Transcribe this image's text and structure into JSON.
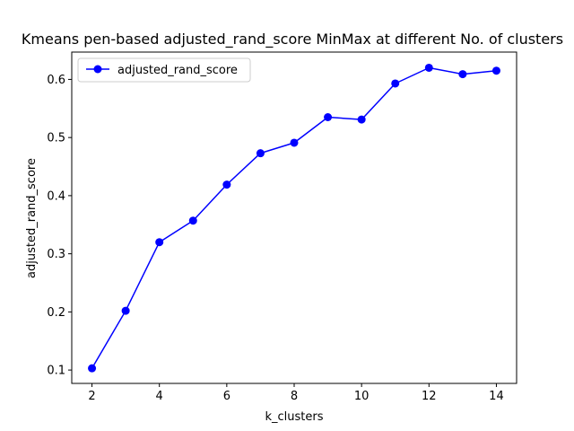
{
  "chart_data": {
    "type": "line",
    "title": "Kmeans pen-based adjusted_rand_score MinMax at different No. of clusters",
    "xlabel": "k_clusters",
    "ylabel": "adjusted_rand_score",
    "x": [
      2,
      3,
      4,
      5,
      6,
      7,
      8,
      9,
      10,
      11,
      12,
      13,
      14
    ],
    "xlim": [
      1.4,
      14.6
    ],
    "ylim": [
      0.077,
      0.647
    ],
    "xticks": [
      2,
      4,
      6,
      8,
      10,
      12,
      14
    ],
    "yticks": [
      0.1,
      0.2,
      0.3,
      0.4,
      0.5,
      0.6
    ],
    "ytick_labels": [
      "0.1",
      "0.2",
      "0.3",
      "0.4",
      "0.5",
      "0.6"
    ],
    "grid": false,
    "legend_position": "upper left",
    "series": [
      {
        "name": "adjusted_rand_score",
        "color": "#0000ff",
        "marker": "circle",
        "values": [
          0.103,
          0.202,
          0.32,
          0.357,
          0.419,
          0.473,
          0.491,
          0.535,
          0.531,
          0.593,
          0.62,
          0.609,
          0.615
        ]
      }
    ]
  }
}
